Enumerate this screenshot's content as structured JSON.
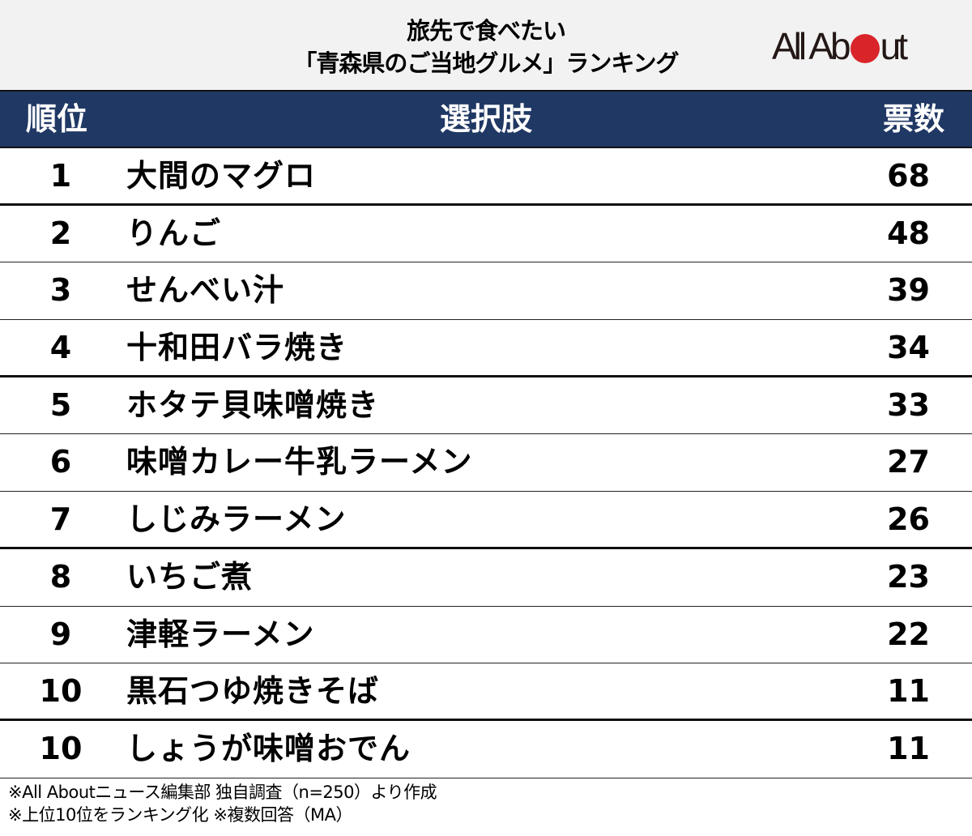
{
  "title": {
    "line1": "旅先で食べたい",
    "line2": "「青森県のご当地グルメ」ランキング"
  },
  "logo": {
    "text_left": "All Ab",
    "text_right": "ut",
    "dot_color": "#d9252a"
  },
  "colors": {
    "header_bg": "#203864",
    "title_bg": "#f2f2f2"
  },
  "table": {
    "headers": {
      "rank": "順位",
      "choice": "選択肢",
      "votes": "票数"
    },
    "rows": [
      {
        "rank": "1",
        "name": "大間のマグロ",
        "votes": "68"
      },
      {
        "rank": "2",
        "name": "りんご",
        "votes": "48"
      },
      {
        "rank": "3",
        "name": "せんべい汁",
        "votes": "39"
      },
      {
        "rank": "4",
        "name": "十和田バラ焼き",
        "votes": "34"
      },
      {
        "rank": "5",
        "name": "ホタテ貝味噌焼き",
        "votes": "33"
      },
      {
        "rank": "6",
        "name": "味噌カレー牛乳ラーメン",
        "votes": "27"
      },
      {
        "rank": "7",
        "name": "しじみラーメン",
        "votes": "26"
      },
      {
        "rank": "8",
        "name": "いちご煮",
        "votes": "23"
      },
      {
        "rank": "9",
        "name": "津軽ラーメン",
        "votes": "22"
      },
      {
        "rank": "10",
        "name": "黒石つゆ焼きそば",
        "votes": "11"
      },
      {
        "rank": "10",
        "name": "しょうが味噌おでん",
        "votes": "11"
      }
    ]
  },
  "notes": {
    "line1": "※All Aboutニュース編集部 独自調査（n=250）より作成",
    "line2": "※上位10位をランキング化 ※複数回答（MA）"
  }
}
